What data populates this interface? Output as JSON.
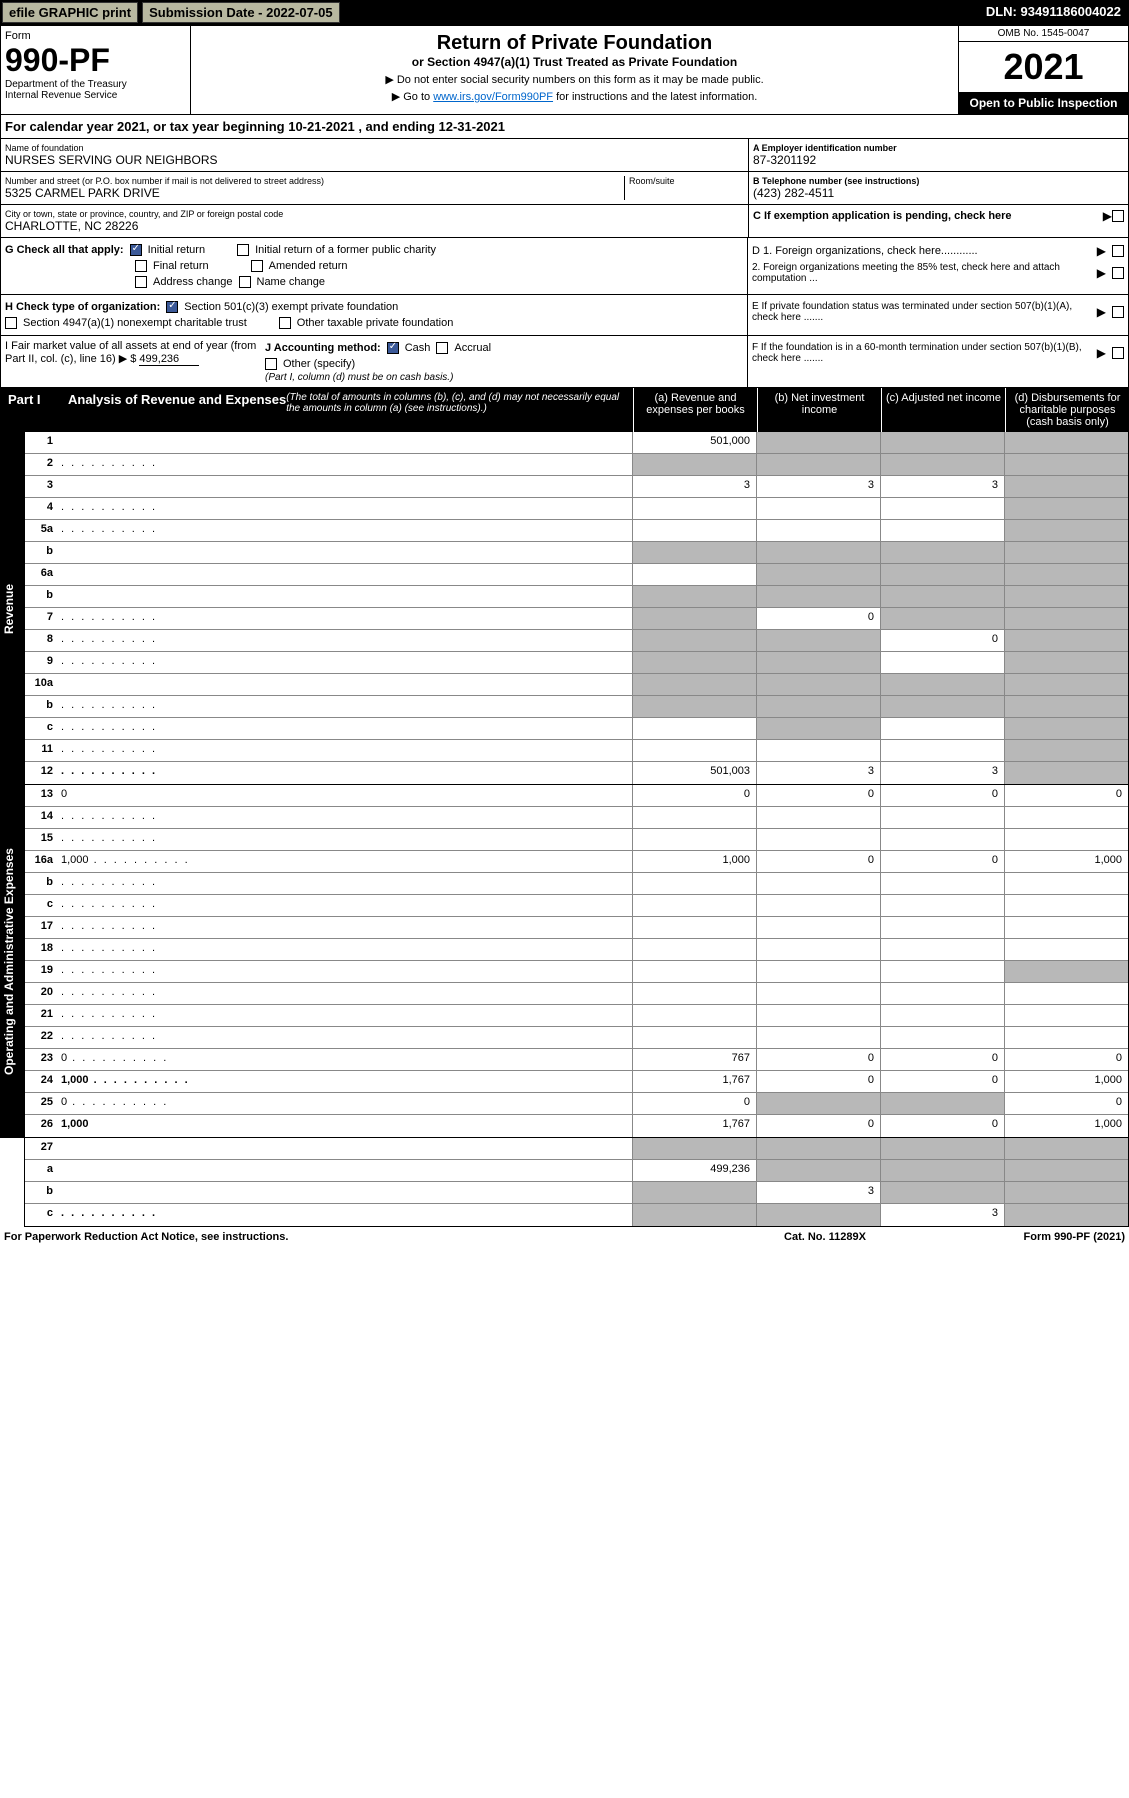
{
  "topbar": {
    "efile": "efile GRAPHIC print",
    "sub_label": "Submission Date - 2022-07-05",
    "dln": "DLN: 93491186004022"
  },
  "header": {
    "form_label": "Form",
    "form_num": "990-PF",
    "dept": "Department of the Treasury",
    "irs": "Internal Revenue Service",
    "title": "Return of Private Foundation",
    "subtitle": "or Section 4947(a)(1) Trust Treated as Private Foundation",
    "instr1": "▶ Do not enter social security numbers on this form as it may be made public.",
    "instr2": "▶ Go to ",
    "link": "www.irs.gov/Form990PF",
    "instr2b": " for instructions and the latest information.",
    "omb": "OMB No. 1545-0047",
    "year": "2021",
    "open": "Open to Public Inspection"
  },
  "cal_year": "For calendar year 2021, or tax year beginning 10-21-2021                    , and ending 12-31-2021",
  "info": {
    "name_lbl": "Name of foundation",
    "name": "NURSES SERVING OUR NEIGHBORS",
    "addr_lbl": "Number and street (or P.O. box number if mail is not delivered to street address)",
    "addr": "5325 CARMEL PARK DRIVE",
    "room_lbl": "Room/suite",
    "city_lbl": "City or town, state or province, country, and ZIP or foreign postal code",
    "city": "CHARLOTTE, NC  28226",
    "a_lbl": "A Employer identification number",
    "a_val": "87-3201192",
    "b_lbl": "B Telephone number (see instructions)",
    "b_val": "(423) 282-4511",
    "c_lbl": "C If exemption application is pending, check here",
    "d1": "D 1. Foreign organizations, check here............",
    "d2": "2. Foreign organizations meeting the 85% test, check here and attach computation ...",
    "e_lbl": "E  If private foundation status was terminated under section 507(b)(1)(A), check here .......",
    "f_lbl": "F  If the foundation is in a 60-month termination under section 507(b)(1)(B), check here .......",
    "g_lbl": "G Check all that apply:",
    "g_initial": "Initial return",
    "g_initial_former": "Initial return of a former public charity",
    "g_final": "Final return",
    "g_amended": "Amended return",
    "g_addr": "Address change",
    "g_name": "Name change",
    "h_lbl": "H Check type of organization:",
    "h_501": "Section 501(c)(3) exempt private foundation",
    "h_4947": "Section 4947(a)(1) nonexempt charitable trust",
    "h_other": "Other taxable private foundation",
    "i_lbl": "I Fair market value of all assets at end of year (from Part II, col. (c), line 16) ▶ $",
    "i_val": "499,236",
    "j_lbl": "J Accounting method:",
    "j_cash": "Cash",
    "j_accrual": "Accrual",
    "j_other": "Other (specify)",
    "j_note": "(Part I, column (d) must be on cash basis.)"
  },
  "part1": {
    "label": "Part I",
    "title": "Analysis of Revenue and Expenses",
    "note": "(The total of amounts in columns (b), (c), and (d) may not necessarily equal the amounts in column (a) (see instructions).)",
    "col_a": "(a)    Revenue and expenses per books",
    "col_b": "(b)    Net investment income",
    "col_c": "(c)   Adjusted net income",
    "col_d": "(d)   Disbursements for charitable purposes (cash basis only)"
  },
  "sections": {
    "revenue": "Revenue",
    "opex": "Operating and Administrative Expenses"
  },
  "lines": [
    {
      "n": "1",
      "d": "",
      "a": "501,000",
      "b": "",
      "c": "",
      "sb": true,
      "sc": true,
      "sd": true
    },
    {
      "n": "2",
      "d": "",
      "a": "",
      "b": "",
      "c": "",
      "sa": true,
      "sb": true,
      "sc": true,
      "sd": true,
      "dots": true
    },
    {
      "n": "3",
      "d": "",
      "a": "3",
      "b": "3",
      "c": "3",
      "sd": true
    },
    {
      "n": "4",
      "d": "",
      "a": "",
      "b": "",
      "c": "",
      "sd": true,
      "dots": true
    },
    {
      "n": "5a",
      "d": "",
      "a": "",
      "b": "",
      "c": "",
      "sd": true,
      "dots": true
    },
    {
      "n": "b",
      "d": "",
      "a": "",
      "b": "",
      "c": "",
      "sa": true,
      "sb": true,
      "sc": true,
      "sd": true
    },
    {
      "n": "6a",
      "d": "",
      "a": "",
      "b": "",
      "c": "",
      "sb": true,
      "sc": true,
      "sd": true
    },
    {
      "n": "b",
      "d": "",
      "a": "",
      "b": "",
      "c": "",
      "sa": true,
      "sb": true,
      "sc": true,
      "sd": true
    },
    {
      "n": "7",
      "d": "",
      "a": "",
      "b": "0",
      "c": "",
      "sa": true,
      "sc": true,
      "sd": true,
      "dots": true
    },
    {
      "n": "8",
      "d": "",
      "a": "",
      "b": "",
      "c": "0",
      "sa": true,
      "sb": true,
      "sd": true,
      "dots": true
    },
    {
      "n": "9",
      "d": "",
      "a": "",
      "b": "",
      "c": "",
      "sa": true,
      "sb": true,
      "sd": true,
      "dots": true
    },
    {
      "n": "10a",
      "d": "",
      "a": "",
      "b": "",
      "c": "",
      "sa": true,
      "sb": true,
      "sc": true,
      "sd": true
    },
    {
      "n": "b",
      "d": "",
      "a": "",
      "b": "",
      "c": "",
      "sa": true,
      "sb": true,
      "sc": true,
      "sd": true,
      "dots": true
    },
    {
      "n": "c",
      "d": "",
      "a": "",
      "b": "",
      "c": "",
      "sb": true,
      "sd": true,
      "dots": true
    },
    {
      "n": "11",
      "d": "",
      "a": "",
      "b": "",
      "c": "",
      "sd": true,
      "dots": true
    },
    {
      "n": "12",
      "d": "",
      "a": "501,003",
      "b": "3",
      "c": "3",
      "sd": true,
      "bold": true,
      "dots": true
    }
  ],
  "opex_lines": [
    {
      "n": "13",
      "d": "0",
      "a": "0",
      "b": "0",
      "c": "0"
    },
    {
      "n": "14",
      "d": "",
      "a": "",
      "b": "",
      "c": "",
      "dots": true
    },
    {
      "n": "15",
      "d": "",
      "a": "",
      "b": "",
      "c": "",
      "dots": true
    },
    {
      "n": "16a",
      "d": "1,000",
      "a": "1,000",
      "b": "0",
      "c": "0",
      "dots": true
    },
    {
      "n": "b",
      "d": "",
      "a": "",
      "b": "",
      "c": "",
      "dots": true
    },
    {
      "n": "c",
      "d": "",
      "a": "",
      "b": "",
      "c": "",
      "dots": true
    },
    {
      "n": "17",
      "d": "",
      "a": "",
      "b": "",
      "c": "",
      "dots": true
    },
    {
      "n": "18",
      "d": "",
      "a": "",
      "b": "",
      "c": "",
      "dots": true
    },
    {
      "n": "19",
      "d": "",
      "a": "",
      "b": "",
      "c": "",
      "sd": true,
      "dots": true
    },
    {
      "n": "20",
      "d": "",
      "a": "",
      "b": "",
      "c": "",
      "dots": true
    },
    {
      "n": "21",
      "d": "",
      "a": "",
      "b": "",
      "c": "",
      "dots": true
    },
    {
      "n": "22",
      "d": "",
      "a": "",
      "b": "",
      "c": "",
      "dots": true
    },
    {
      "n": "23",
      "d": "0",
      "a": "767",
      "b": "0",
      "c": "0",
      "dots": true
    },
    {
      "n": "24",
      "d": "1,000",
      "a": "1,767",
      "b": "0",
      "c": "0",
      "bold": true,
      "dots": true
    },
    {
      "n": "25",
      "d": "0",
      "a": "0",
      "b": "",
      "c": "",
      "sb": true,
      "sc": true,
      "dots": true
    },
    {
      "n": "26",
      "d": "1,000",
      "a": "1,767",
      "b": "0",
      "c": "0",
      "bold": true
    }
  ],
  "bottom_lines": [
    {
      "n": "27",
      "d": "",
      "a": "",
      "b": "",
      "c": "",
      "sa": true,
      "sb": true,
      "sc": true,
      "sd": true
    },
    {
      "n": "a",
      "d": "",
      "a": "499,236",
      "b": "",
      "c": "",
      "sb": true,
      "sc": true,
      "sd": true,
      "bold": true
    },
    {
      "n": "b",
      "d": "",
      "a": "",
      "b": "3",
      "c": "",
      "sa": true,
      "sc": true,
      "sd": true,
      "bold": true
    },
    {
      "n": "c",
      "d": "",
      "a": "",
      "b": "",
      "c": "3",
      "sa": true,
      "sb": true,
      "sd": true,
      "bold": true,
      "dots": true
    }
  ],
  "footer": {
    "left": "For Paperwork Reduction Act Notice, see instructions.",
    "mid": "Cat. No. 11289X",
    "right": "Form 990-PF (2021)"
  }
}
